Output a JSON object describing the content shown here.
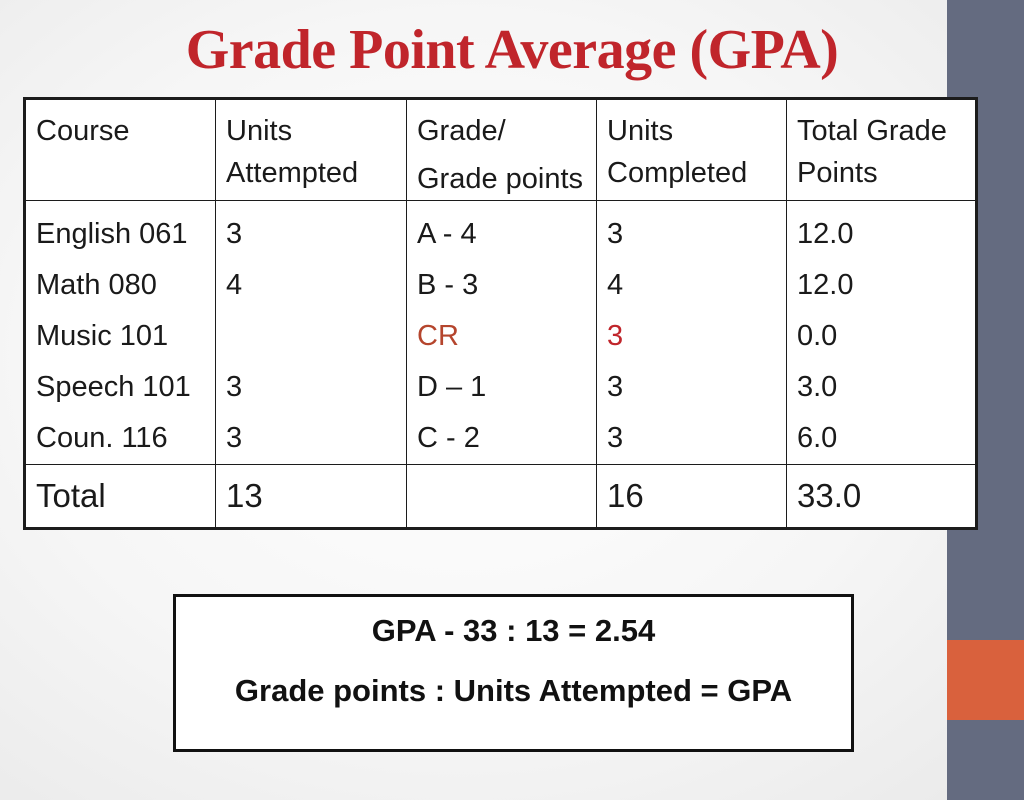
{
  "title": "Grade Point Average (GPA)",
  "colors": {
    "title": "#c0252b",
    "highlight": "#c0252b",
    "sidebar": "#646b80",
    "sidebar_accent": "#d9613d"
  },
  "table": {
    "headers": [
      [
        "Course"
      ],
      [
        "Units",
        "Attempted"
      ],
      [
        "Grade/",
        "Grade points"
      ],
      [
        "Units",
        "Completed"
      ],
      [
        "Total Grade",
        "Points"
      ]
    ],
    "rows": [
      {
        "course": "English 061",
        "units_attempted": "3",
        "grade": "A - 4",
        "units_completed": "3",
        "total_points": "12.0"
      },
      {
        "course": "Math 080",
        "units_attempted": "4",
        "grade": "B - 3",
        "units_completed": "4",
        "total_points": "12.0"
      },
      {
        "course": "Music 101",
        "units_attempted": "",
        "grade": "CR",
        "units_completed": "3",
        "total_points": "0.0"
      },
      {
        "course": "Speech 101",
        "units_attempted": "3",
        "grade": "D – 1",
        "units_completed": "3",
        "total_points": "3.0"
      },
      {
        "course": "Coun. 116",
        "units_attempted": "3",
        "grade": "C - 2",
        "units_completed": "3",
        "total_points": "6.0"
      }
    ],
    "total": {
      "label": "Total",
      "units_attempted": "13",
      "grade": "",
      "units_completed": "16",
      "total_points": "33.0"
    }
  },
  "formula": {
    "line1": "GPA -  33 : 13 = 2.54",
    "line2": "Grade points : Units Attempted = GPA"
  }
}
